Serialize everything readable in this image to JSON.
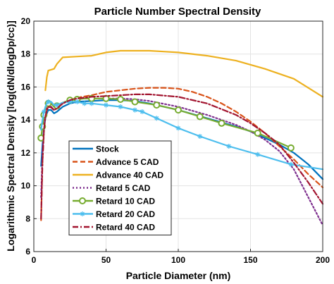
{
  "chart_data": {
    "type": "line",
    "title": "Particle Number Spectral Density",
    "xlabel": "Particle Diameter (nm)",
    "ylabel": "Logarithmic Spectral Density [log(dN/dlogDp/cc)]",
    "xlim": [
      0,
      200
    ],
    "ylim": [
      6,
      20
    ],
    "xticks": [
      0,
      50,
      100,
      150,
      200
    ],
    "yticks": [
      6,
      8,
      10,
      12,
      14,
      16,
      18,
      20
    ],
    "grid": true,
    "legend_position": "bottom-left",
    "series": [
      {
        "name": "Stock",
        "color": "#0072BD",
        "dash": "solid",
        "marker": "none",
        "x": [
          5,
          6,
          7,
          8,
          9,
          10,
          12,
          14,
          16,
          20,
          25,
          30,
          40,
          50,
          60,
          70,
          80,
          100,
          120,
          140,
          150,
          160,
          170,
          180,
          190,
          200
        ],
        "y": [
          11.2,
          12.5,
          13.5,
          14.1,
          14.4,
          14.6,
          14.6,
          14.4,
          14.5,
          14.8,
          15.0,
          15.1,
          15.15,
          15.2,
          15.2,
          15.15,
          15.0,
          14.6,
          14.1,
          13.6,
          13.3,
          12.9,
          12.5,
          12.0,
          11.3,
          10.4
        ]
      },
      {
        "name": "Advance 5 CAD",
        "color": "#D95319",
        "dash": "dashed",
        "marker": "none",
        "x": [
          5,
          6,
          7,
          8,
          9,
          10,
          12,
          14,
          16,
          20,
          25,
          30,
          40,
          50,
          60,
          70,
          80,
          90,
          100,
          110,
          120,
          130,
          140,
          150,
          160,
          170,
          180,
          190,
          200
        ],
        "y": [
          7.9,
          11.5,
          13.3,
          14.2,
          14.6,
          14.8,
          14.8,
          14.6,
          14.8,
          15.0,
          15.2,
          15.35,
          15.5,
          15.7,
          15.8,
          15.9,
          15.95,
          15.95,
          15.9,
          15.7,
          15.4,
          15.0,
          14.5,
          13.9,
          13.2,
          12.4,
          11.6,
          10.7,
          9.9
        ]
      },
      {
        "name": "Advance 40 CAD",
        "color": "#EDB120",
        "dash": "solid",
        "marker": "none",
        "x": [
          8,
          9,
          10,
          12,
          14,
          16,
          20,
          30,
          40,
          50,
          60,
          70,
          80,
          90,
          100,
          120,
          140,
          160,
          180,
          200
        ],
        "y": [
          15.8,
          16.6,
          17.0,
          17.05,
          17.1,
          17.4,
          17.8,
          17.85,
          17.9,
          18.1,
          18.2,
          18.2,
          18.2,
          18.15,
          18.1,
          17.9,
          17.6,
          17.1,
          16.5,
          15.4
        ]
      },
      {
        "name": "Retard 5 CAD",
        "color": "#7E2F8E",
        "dash": "dotted",
        "marker": "none",
        "x": [
          5,
          6,
          7,
          8,
          9,
          10,
          12,
          14,
          16,
          20,
          25,
          30,
          40,
          50,
          60,
          70,
          80,
          100,
          120,
          140,
          150,
          160,
          170,
          180,
          190,
          200
        ],
        "y": [
          9.3,
          12.0,
          13.5,
          14.3,
          14.7,
          14.9,
          14.8,
          14.6,
          14.7,
          15.0,
          15.2,
          15.3,
          15.3,
          15.3,
          15.3,
          15.25,
          15.15,
          14.8,
          14.3,
          13.7,
          13.3,
          12.8,
          12.1,
          11.0,
          9.3,
          7.6
        ]
      },
      {
        "name": "Retard 10 CAD",
        "color": "#77AC30",
        "dash": "solid",
        "marker": "circle",
        "x": [
          5,
          6,
          7,
          8,
          9,
          10,
          12,
          14,
          16,
          20,
          25,
          30,
          35,
          40,
          50,
          60,
          70,
          85,
          100,
          115,
          130,
          155,
          178
        ],
        "y": [
          12.9,
          13.6,
          14.3,
          14.7,
          14.95,
          15.0,
          15.0,
          14.8,
          14.85,
          15.05,
          15.2,
          15.25,
          15.3,
          15.3,
          15.3,
          15.25,
          15.1,
          14.9,
          14.6,
          14.2,
          13.8,
          13.2,
          12.3
        ]
      },
      {
        "name": "Retard 20 CAD",
        "color": "#4DBEEE",
        "dash": "solid",
        "marker": "asterisk",
        "x": [
          5,
          6,
          7,
          8,
          9,
          10,
          12,
          14,
          16,
          20,
          25,
          30,
          35,
          40,
          50,
          60,
          70,
          75,
          85,
          100,
          115,
          135,
          155,
          178,
          200
        ],
        "y": [
          13.4,
          14.0,
          14.5,
          14.8,
          15.0,
          15.1,
          15.1,
          14.9,
          14.9,
          15.05,
          15.1,
          15.1,
          15.0,
          15.0,
          14.9,
          14.8,
          14.6,
          14.5,
          14.1,
          13.5,
          13.0,
          12.4,
          11.9,
          11.3,
          11.0
        ]
      },
      {
        "name": "Retard 40 CAD",
        "color": "#A2142F",
        "dash": "dashdot",
        "marker": "none",
        "x": [
          5,
          6,
          7,
          8,
          9,
          10,
          12,
          14,
          16,
          20,
          25,
          30,
          40,
          50,
          60,
          70,
          80,
          100,
          120,
          140,
          150,
          160,
          170,
          180,
          190,
          200
        ],
        "y": [
          8.0,
          11.5,
          13.4,
          14.2,
          14.6,
          14.8,
          14.75,
          14.6,
          14.7,
          15.0,
          15.2,
          15.3,
          15.4,
          15.45,
          15.5,
          15.55,
          15.55,
          15.4,
          15.0,
          14.3,
          13.8,
          13.2,
          12.5,
          11.4,
          10.2,
          8.9
        ]
      }
    ]
  }
}
